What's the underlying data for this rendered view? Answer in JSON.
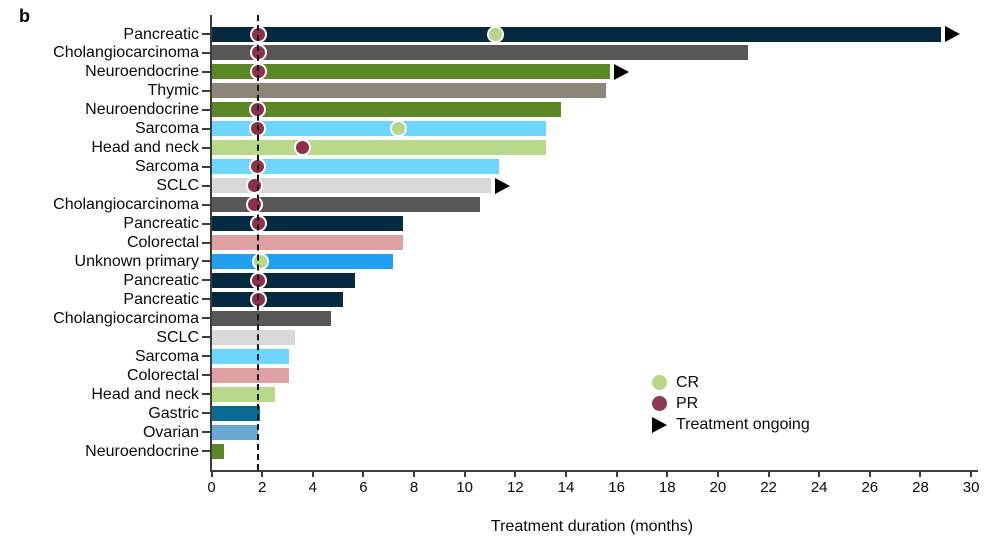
{
  "panel_label": "b",
  "chart_data": {
    "type": "bar",
    "orientation": "horizontal",
    "title": "",
    "xlabel": "Treatment duration (months)",
    "ylabel": "",
    "xlim": [
      0,
      30
    ],
    "xticks": [
      0,
      2,
      4,
      6,
      8,
      10,
      12,
      14,
      16,
      18,
      20,
      22,
      24,
      26,
      28,
      30
    ],
    "grid": false,
    "reference_line_x": 1.85,
    "rows": [
      {
        "label": "Pancreatic",
        "duration": 28.8,
        "color": "#052A40",
        "ongoing": true,
        "markers": [
          {
            "type": "PR",
            "x": 1.85
          },
          {
            "type": "CR",
            "x": 11.2
          }
        ]
      },
      {
        "label": "Cholangiocarcinoma",
        "duration": 21.2,
        "color": "#575756",
        "ongoing": false,
        "markers": [
          {
            "type": "PR",
            "x": 1.85
          }
        ]
      },
      {
        "label": "Neuroendocrine",
        "duration": 15.75,
        "color": "#5C8727",
        "ongoing": true,
        "markers": [
          {
            "type": "PR",
            "x": 1.85
          }
        ]
      },
      {
        "label": "Thymic",
        "duration": 15.6,
        "color": "#8E857A",
        "ongoing": false,
        "markers": []
      },
      {
        "label": "Neuroendocrine",
        "duration": 13.8,
        "color": "#5C8727",
        "ongoing": false,
        "markers": [
          {
            "type": "PR",
            "x": 1.8
          }
        ]
      },
      {
        "label": "Sarcoma",
        "duration": 13.2,
        "color": "#6ED5FC",
        "ongoing": false,
        "markers": [
          {
            "type": "PR",
            "x": 1.8
          },
          {
            "type": "CR",
            "x": 7.4
          }
        ]
      },
      {
        "label": "Head and neck",
        "duration": 13.2,
        "color": "#B9D98A",
        "ongoing": false,
        "markers": [
          {
            "type": "PR",
            "x": 3.6
          }
        ]
      },
      {
        "label": "Sarcoma",
        "duration": 11.35,
        "color": "#6ED5FC",
        "ongoing": false,
        "markers": [
          {
            "type": "PR",
            "x": 1.8
          }
        ]
      },
      {
        "label": "SCLC",
        "duration": 11.05,
        "color": "#D8D8D8",
        "ongoing": true,
        "markers": [
          {
            "type": "PR",
            "x": 1.7
          }
        ]
      },
      {
        "label": "Cholangiocarcinoma",
        "duration": 10.6,
        "color": "#575756",
        "ongoing": false,
        "markers": [
          {
            "type": "PR",
            "x": 1.7
          }
        ]
      },
      {
        "label": "Pancreatic",
        "duration": 7.55,
        "color": "#052A40",
        "ongoing": false,
        "markers": [
          {
            "type": "PR",
            "x": 1.85
          }
        ]
      },
      {
        "label": "Colorectal",
        "duration": 7.55,
        "color": "#E0A1A5",
        "ongoing": false,
        "markers": []
      },
      {
        "label": "Unknown primary",
        "duration": 7.15,
        "color": "#21A0F2",
        "ongoing": false,
        "markers": [
          {
            "type": "CR",
            "x": 1.95
          }
        ]
      },
      {
        "label": "Pancreatic",
        "duration": 5.65,
        "color": "#052A40",
        "ongoing": false,
        "markers": [
          {
            "type": "PR",
            "x": 1.85
          }
        ]
      },
      {
        "label": "Pancreatic",
        "duration": 5.2,
        "color": "#052A40",
        "ongoing": false,
        "markers": [
          {
            "type": "PR",
            "x": 1.85
          }
        ]
      },
      {
        "label": "Cholangiocarcinoma",
        "duration": 4.7,
        "color": "#575756",
        "ongoing": false,
        "markers": []
      },
      {
        "label": "SCLC",
        "duration": 3.3,
        "color": "#D8D8D8",
        "ongoing": false,
        "markers": []
      },
      {
        "label": "Sarcoma",
        "duration": 3.05,
        "color": "#6ED5FC",
        "ongoing": false,
        "markers": []
      },
      {
        "label": "Colorectal",
        "duration": 3.05,
        "color": "#E0A1A5",
        "ongoing": false,
        "markers": []
      },
      {
        "label": "Head and neck",
        "duration": 2.5,
        "color": "#B9D98A",
        "ongoing": false,
        "markers": []
      },
      {
        "label": "Gastric",
        "duration": 1.9,
        "color": "#0B6A91",
        "ongoing": false,
        "markers": []
      },
      {
        "label": "Ovarian",
        "duration": 1.85,
        "color": "#69A9D7",
        "ongoing": false,
        "markers": []
      },
      {
        "label": "Neuroendocrine",
        "duration": 0.5,
        "color": "#5C8727",
        "ongoing": false,
        "markers": []
      }
    ]
  },
  "marker_colors": {
    "CR": "#B8D687",
    "PR": "#8E2F4D",
    "outline": "#FFFFFF",
    "ongoing": "#000000"
  },
  "legend": {
    "position": "inside-right-bottom",
    "items": [
      {
        "label": "CR",
        "marker": "circle",
        "color": "#B8D687"
      },
      {
        "label": "PR",
        "marker": "circle",
        "color": "#8E3A52"
      },
      {
        "label": "Treatment ongoing",
        "marker": "triangle",
        "color": "#000000"
      }
    ]
  }
}
